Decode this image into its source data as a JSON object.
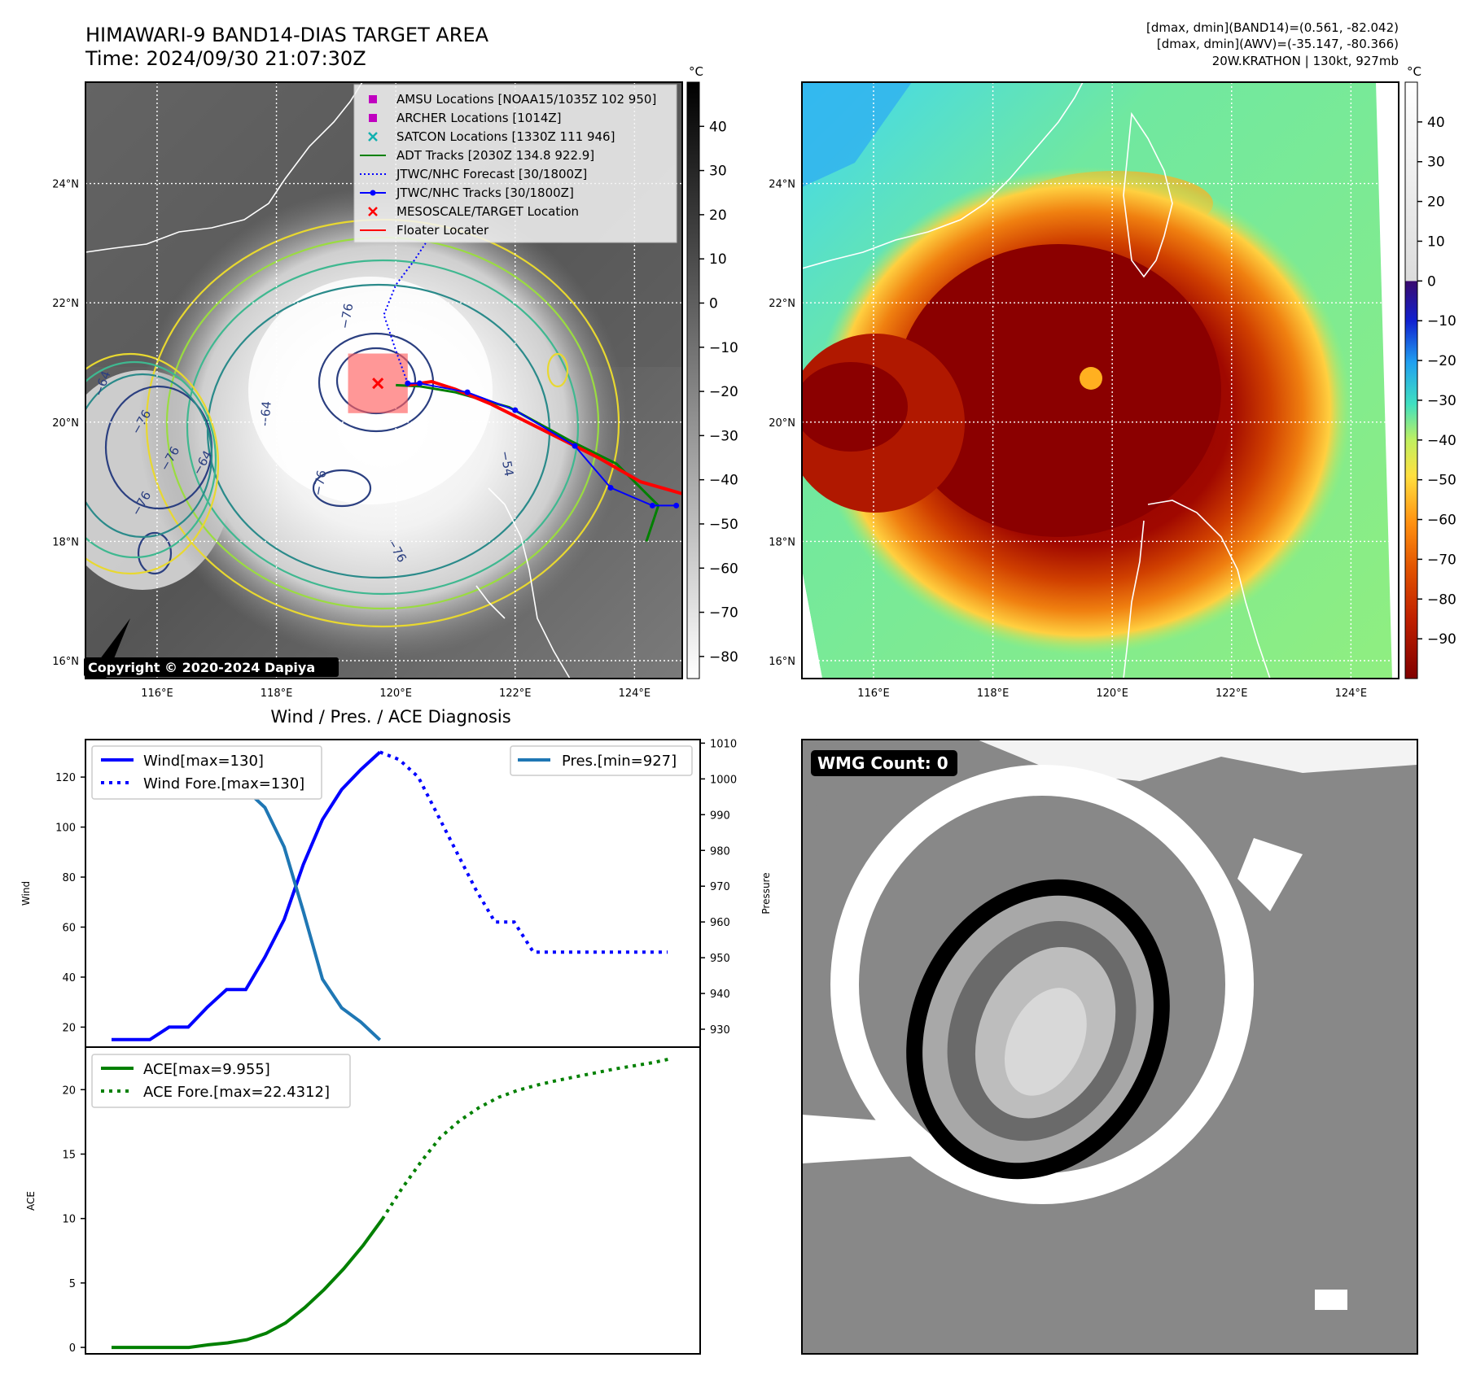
{
  "header": {
    "title_line1": "HIMAWARI-9 BAND14-DIAS TARGET AREA",
    "title_line2": "Time: 2024/09/30 21:07:30Z",
    "stats_line1": "[dmax, dmin](BAND14)=(0.561, -82.042)",
    "stats_line2": "[dmax, dmin](AWV)=(-35.147, -80.366)",
    "stats_line3": "20W.KRATHON | 130kt, 927mb"
  },
  "map_axes": {
    "lat_labels": [
      "24°N",
      "22°N",
      "20°N",
      "18°N",
      "16°N"
    ],
    "lat_values": [
      24,
      22,
      20,
      18,
      16
    ],
    "lon_labels": [
      "116°E",
      "118°E",
      "120°E",
      "122°E",
      "124°E"
    ],
    "lon_values": [
      116,
      118,
      120,
      122,
      124
    ],
    "lat_range": [
      15.7,
      25.7
    ],
    "lon_range": [
      114.8,
      124.8
    ]
  },
  "ir_map": {
    "copyright": "Copyright © 2020-2024 Dapiya",
    "colorbar_unit": "°C",
    "colorbar_ticks": [
      "40",
      "30",
      "20",
      "10",
      "0",
      "−10",
      "−20",
      "−30",
      "−40",
      "−50",
      "−60",
      "−70",
      "−80"
    ],
    "colorbar_values": [
      40,
      30,
      20,
      10,
      0,
      -10,
      -20,
      -30,
      -40,
      -50,
      -60,
      -70,
      -80
    ],
    "colorbar_range": [
      -85,
      50
    ],
    "contour_labels": [
      "−76",
      "−64",
      "−76",
      "−76",
      "−76",
      "−76",
      "−64",
      "−76",
      "−54",
      "−64"
    ],
    "legend": [
      {
        "label": "AMSU Locations [NOAA15/1035Z 102 950]",
        "marker": "square",
        "color": "#c000c0"
      },
      {
        "label": "ARCHER Locations [1014Z]",
        "marker": "square",
        "color": "#c000c0"
      },
      {
        "label": "SATCON Locations [1330Z 111 946]",
        "marker": "x",
        "color": "#10b0b0"
      },
      {
        "label": "ADT Tracks [2030Z 134.8 922.9]",
        "marker": "line",
        "color": "#008000"
      },
      {
        "label": "JTWC/NHC Forecast [30/1800Z]",
        "marker": "dotted",
        "color": "#0000ff"
      },
      {
        "label": "JTWC/NHC Tracks [30/1800Z]",
        "marker": "line-dot",
        "color": "#0000ff"
      },
      {
        "label": "MESOSCALE/TARGET Location",
        "marker": "x",
        "color": "#ff0000"
      },
      {
        "label": "Floater Locater",
        "marker": "line",
        "color": "#ff0000"
      }
    ],
    "tracks": {
      "jtwc": [
        [
          124.7,
          18.6
        ],
        [
          124.3,
          18.6
        ],
        [
          123.6,
          18.9
        ],
        [
          123.0,
          19.6
        ],
        [
          122.0,
          20.2
        ],
        [
          121.2,
          20.5
        ],
        [
          120.4,
          20.65
        ],
        [
          120.2,
          20.65
        ]
      ],
      "jtwc_forecast": [
        [
          120.2,
          20.65
        ],
        [
          120.0,
          21.2
        ],
        [
          119.8,
          21.8
        ],
        [
          120.0,
          22.3
        ],
        [
          120.3,
          22.7
        ],
        [
          120.5,
          23.0
        ]
      ],
      "floater": [
        [
          124.8,
          18.8
        ],
        [
          124.1,
          19.0
        ],
        [
          123.4,
          19.4
        ],
        [
          122.4,
          19.9
        ],
        [
          121.6,
          20.3
        ],
        [
          121.0,
          20.55
        ],
        [
          120.6,
          20.68
        ],
        [
          120.2,
          20.62
        ]
      ],
      "adt": [
        [
          124.2,
          18.0
        ],
        [
          124.4,
          18.6
        ],
        [
          123.7,
          19.3
        ],
        [
          122.9,
          19.7
        ],
        [
          121.9,
          20.25
        ],
        [
          121.0,
          20.5
        ],
        [
          120.4,
          20.6
        ],
        [
          120.0,
          20.62
        ]
      ]
    },
    "target_location": [
      119.7,
      20.65
    ]
  },
  "colorized_map": {
    "colorbar_unit": "°C",
    "colorbar_ticks": [
      "40",
      "30",
      "20",
      "10",
      "0",
      "−10",
      "−20",
      "−30",
      "−40",
      "−50",
      "−60",
      "−70",
      "−80",
      "−90"
    ],
    "colorbar_values": [
      40,
      30,
      20,
      10,
      0,
      -10,
      -20,
      -30,
      -40,
      -50,
      -60,
      -70,
      -80,
      -90
    ],
    "colorbar_range": [
      -100,
      50
    ]
  },
  "wmg": {
    "badge": "WMG Count: 0"
  },
  "chart_data": [
    {
      "type": "line",
      "title": "Wind / Pres. / ACE Diagnosis",
      "ylabel": "Wind",
      "ylabel_right": "Pressure",
      "ylim": [
        12,
        135
      ],
      "ylim_right": [
        925,
        1011
      ],
      "yticks": [
        20,
        40,
        60,
        80,
        100,
        120
      ],
      "yticks_right": [
        930,
        940,
        950,
        960,
        970,
        980,
        990,
        1000,
        1010
      ],
      "series": [
        {
          "name": "Wind[max=130]",
          "axis": "left",
          "style": "solid",
          "color": "#0000ff",
          "x": [
            0,
            1,
            2,
            3,
            4,
            5,
            6,
            7,
            8,
            9,
            10,
            11,
            12,
            13,
            14
          ],
          "values": [
            15,
            15,
            15,
            20,
            20,
            28,
            35,
            35,
            48,
            63,
            85,
            103,
            115,
            123,
            130
          ]
        },
        {
          "name": "Wind Fore.[max=130]",
          "axis": "left",
          "style": "dotted",
          "color": "#0000ff",
          "x": [
            14,
            15,
            16,
            17,
            18,
            19,
            20,
            21,
            22,
            23,
            24,
            25,
            26,
            27,
            28,
            29
          ],
          "values": [
            130,
            127,
            120,
            105,
            90,
            75,
            62,
            62,
            50,
            50,
            50,
            50,
            50,
            50,
            50,
            50
          ]
        },
        {
          "name": "Pres.[min=927]",
          "axis": "right",
          "style": "solid",
          "color": "#1f77b4",
          "x": [
            0,
            1,
            2,
            3,
            4,
            5,
            6,
            7,
            8,
            9,
            10,
            11,
            12,
            13,
            14
          ],
          "values": [
            1008,
            1008,
            1005,
            1005,
            1003,
            1001,
            1000,
            997,
            992,
            981,
            963,
            944,
            936,
            932,
            927
          ]
        }
      ]
    },
    {
      "type": "line",
      "ylabel": "ACE",
      "ylim": [
        -0.5,
        23.3
      ],
      "yticks": [
        0,
        5,
        10,
        15,
        20
      ],
      "series": [
        {
          "name": "ACE[max=9.955]",
          "style": "solid",
          "color": "#008000",
          "x": [
            0,
            2,
            4,
            5,
            6,
            7,
            8,
            9,
            10,
            11,
            12,
            13,
            14
          ],
          "values": [
            0,
            0,
            0,
            0.2,
            0.35,
            0.6,
            1.1,
            1.9,
            3.1,
            4.5,
            6.1,
            7.9,
            9.955
          ]
        },
        {
          "name": "ACE Fore.[max=22.4312]",
          "style": "dotted",
          "color": "#008000",
          "x": [
            14,
            15,
            16,
            17,
            18,
            19,
            20,
            21,
            22,
            23,
            24,
            25,
            26,
            27,
            28,
            29
          ],
          "values": [
            9.955,
            12.3,
            14.4,
            16.3,
            17.6,
            18.6,
            19.4,
            19.95,
            20.35,
            20.7,
            21.0,
            21.3,
            21.6,
            21.85,
            22.1,
            22.4312
          ]
        }
      ]
    }
  ]
}
